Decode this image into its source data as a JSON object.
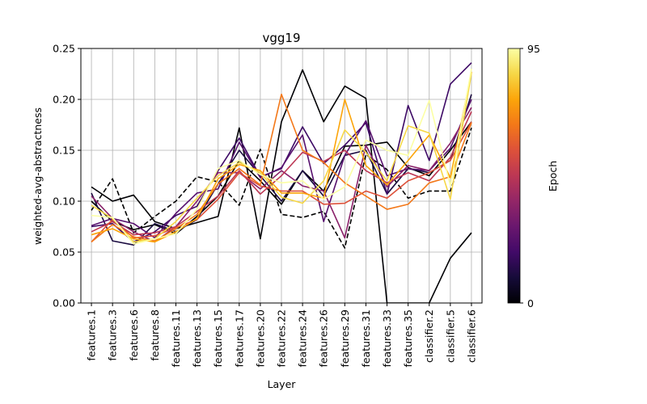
{
  "chart_data": {
    "type": "line",
    "title": "vgg19",
    "xlabel": "Layer",
    "ylabel": "weighted-avg-abstractness",
    "categories": [
      "features.1",
      "features.3",
      "features.6",
      "features.8",
      "features.11",
      "features.13",
      "features.15",
      "features.17",
      "features.20",
      "features.22",
      "features.24",
      "features.26",
      "features.29",
      "features.31",
      "features.33",
      "features.35",
      "classifier.2",
      "classifier.5",
      "classifier.6"
    ],
    "ylim": [
      0,
      0.25
    ],
    "yticks": [
      "0.00",
      "0.05",
      "0.10",
      "0.15",
      "0.20",
      "0.25"
    ],
    "grid": true,
    "colorbar": {
      "label": "Epoch",
      "min": 0,
      "max": 95,
      "min_label": "0",
      "max_label": "95",
      "colormap": "inferno"
    },
    "series": [
      {
        "epoch": 0,
        "color": "#000004",
        "dashed": false,
        "values": [
          0.114,
          0.1,
          0.106,
          0.08,
          0.073,
          0.079,
          0.085,
          0.172,
          0.063,
          0.178,
          0.229,
          0.178,
          0.213,
          0.201,
          0.0,
          0.0,
          0.0,
          0.044,
          0.069
        ]
      },
      {
        "epoch": 2,
        "color": "#000000",
        "dashed": true,
        "values": [
          0.091,
          0.122,
          0.069,
          0.085,
          0.1,
          0.124,
          0.119,
          0.096,
          0.151,
          0.087,
          0.084,
          0.09,
          0.054,
          0.146,
          0.131,
          0.103,
          0.11,
          0.11,
          0.172
        ]
      },
      {
        "epoch": 5,
        "color": "#000000",
        "dashed": false,
        "values": [
          0.1,
          0.08,
          0.072,
          0.077,
          0.068,
          0.085,
          0.105,
          0.14,
          0.12,
          0.097,
          0.13,
          0.11,
          0.154,
          0.155,
          0.158,
          0.133,
          0.125,
          0.15,
          0.178
        ]
      },
      {
        "epoch": 10,
        "color": "#1b0c41",
        "dashed": false,
        "values": [
          0.108,
          0.061,
          0.057,
          0.078,
          0.07,
          0.082,
          0.117,
          0.15,
          0.125,
          0.1,
          0.13,
          0.105,
          0.145,
          0.15,
          0.107,
          0.132,
          0.128,
          0.14,
          0.205
        ]
      },
      {
        "epoch": 20,
        "color": "#3d0965",
        "dashed": false,
        "values": [
          0.075,
          0.078,
          0.06,
          0.07,
          0.086,
          0.095,
          0.13,
          0.162,
          0.124,
          0.132,
          0.173,
          0.137,
          0.155,
          0.177,
          0.107,
          0.194,
          0.14,
          0.215,
          0.236
        ]
      },
      {
        "epoch": 30,
        "color": "#57106e",
        "dashed": false,
        "values": [
          0.076,
          0.083,
          0.078,
          0.064,
          0.088,
          0.108,
          0.112,
          0.158,
          0.123,
          0.133,
          0.165,
          0.08,
          0.145,
          0.179,
          0.125,
          0.132,
          0.13,
          0.152,
          0.2
        ]
      },
      {
        "epoch": 40,
        "color": "#8a226a",
        "dashed": false,
        "values": [
          0.105,
          0.083,
          0.07,
          0.06,
          0.075,
          0.1,
          0.128,
          0.128,
          0.112,
          0.13,
          0.115,
          0.11,
          0.064,
          0.155,
          0.114,
          0.135,
          0.13,
          0.157,
          0.192
        ]
      },
      {
        "epoch": 50,
        "color": "#bc3754",
        "dashed": false,
        "values": [
          0.07,
          0.08,
          0.067,
          0.069,
          0.075,
          0.09,
          0.105,
          0.13,
          0.107,
          0.125,
          0.148,
          0.139,
          0.15,
          0.13,
          0.118,
          0.128,
          0.12,
          0.143,
          0.188
        ]
      },
      {
        "epoch": 60,
        "color": "#dd513a",
        "dashed": false,
        "values": [
          0.06,
          0.082,
          0.064,
          0.066,
          0.074,
          0.082,
          0.102,
          0.128,
          0.115,
          0.11,
          0.11,
          0.097,
          0.098,
          0.11,
          0.103,
          0.12,
          0.128,
          0.14,
          0.178
        ]
      },
      {
        "epoch": 70,
        "color": "#f37819",
        "dashed": false,
        "values": [
          0.06,
          0.077,
          0.065,
          0.061,
          0.073,
          0.087,
          0.117,
          0.132,
          0.116,
          0.205,
          0.15,
          0.138,
          0.118,
          0.105,
          0.092,
          0.097,
          0.118,
          0.124,
          0.177
        ]
      },
      {
        "epoch": 80,
        "color": "#fca50a",
        "dashed": false,
        "values": [
          0.067,
          0.073,
          0.063,
          0.06,
          0.07,
          0.083,
          0.122,
          0.136,
          0.13,
          0.108,
          0.108,
          0.103,
          0.2,
          0.135,
          0.116,
          0.14,
          0.165,
          0.123,
          0.227
        ]
      },
      {
        "epoch": 90,
        "color": "#f6d746",
        "dashed": false,
        "values": [
          0.096,
          0.083,
          0.06,
          0.063,
          0.08,
          0.103,
          0.125,
          0.138,
          0.128,
          0.104,
          0.098,
          0.12,
          0.17,
          0.148,
          0.12,
          0.174,
          0.167,
          0.102,
          0.226
        ]
      },
      {
        "epoch": 95,
        "color": "#fcffa4",
        "dashed": false,
        "values": [
          0.086,
          0.084,
          0.058,
          0.063,
          0.068,
          0.092,
          0.132,
          0.14,
          0.126,
          0.118,
          0.12,
          0.102,
          0.114,
          0.16,
          0.15,
          0.145,
          0.199,
          0.115,
          0.23
        ]
      }
    ]
  }
}
